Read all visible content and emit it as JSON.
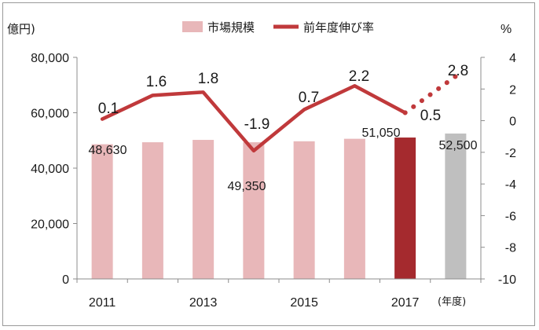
{
  "chart_data": {
    "type": "bar",
    "left_axis_unit": "億円)",
    "right_axis_unit": "%",
    "x_unit": "(年度)",
    "years": [
      2011,
      2012,
      2013,
      2014,
      2015,
      2016,
      2017,
      2018
    ],
    "x_tick_labels": [
      "2011",
      "2013",
      "2015",
      "2017"
    ],
    "y_left": {
      "min": 0,
      "max": 80000,
      "step": 20000,
      "ticks": [
        "0",
        "20,000",
        "40,000",
        "60,000",
        "80,000"
      ]
    },
    "y_right": {
      "min": -10,
      "max": 4,
      "step": 2,
      "ticks": [
        "-10",
        "-8",
        "-6",
        "-4",
        "-2",
        "0",
        "2",
        "4"
      ]
    },
    "series": [
      {
        "name": "市場規模",
        "kind": "bar",
        "values": [
          48630,
          49350,
          50200,
          49350,
          49700,
          50600,
          51050,
          52500
        ],
        "colors": [
          "#e8b7b9",
          "#e8b7b9",
          "#e8b7b9",
          "#e8b7b9",
          "#e8b7b9",
          "#e8b7b9",
          "#a52a2e",
          "#bfbfbf"
        ]
      },
      {
        "name": "前年度伸び率",
        "kind": "line",
        "values": [
          0.1,
          1.6,
          1.8,
          -1.9,
          0.7,
          2.2,
          0.5,
          2.8
        ],
        "color": "#c0393b",
        "projected_from_index": 6
      }
    ],
    "data_labels": [
      {
        "text": "48,630"
      },
      {
        "text": "49,350"
      },
      {
        "text": "51,050"
      },
      {
        "text": "52,500"
      },
      {
        "text": "0.1"
      },
      {
        "text": "1.6"
      },
      {
        "text": "1.8"
      },
      {
        "text": "-1.9"
      },
      {
        "text": "0.7"
      },
      {
        "text": "2.2"
      },
      {
        "text": "0.5"
      },
      {
        "text": "2.8"
      }
    ],
    "legend_placement": "top-center"
  }
}
